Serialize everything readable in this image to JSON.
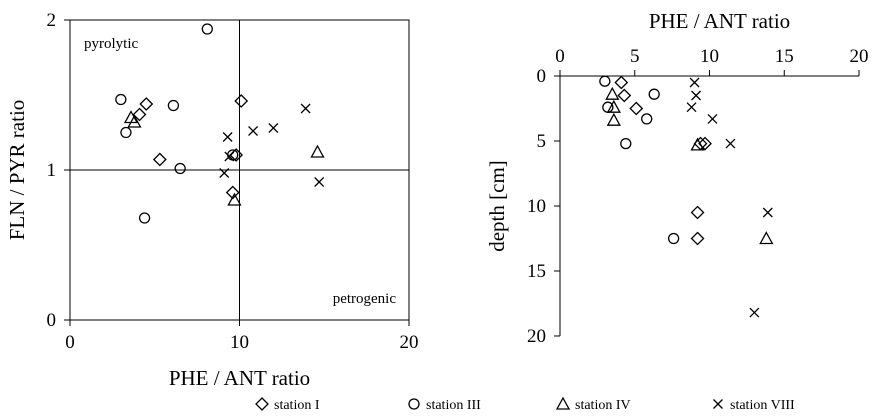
{
  "chart_data": [
    {
      "type": "scatter",
      "xlabel": "PHE / ANT ratio",
      "ylabel": "FLN / PYR ratio",
      "xlim": [
        0,
        20
      ],
      "ylim": [
        0,
        2
      ],
      "x_ticks": [
        "0",
        "10",
        "20"
      ],
      "y_ticks": [
        "0",
        "1",
        "2"
      ],
      "reference_lines": {
        "x": 10,
        "y": 1
      },
      "annotations": [
        {
          "id": "pyrolytic",
          "text": "pyrolytic",
          "position": "top-left"
        },
        {
          "id": "petrogenic",
          "text": "petrogenic",
          "position": "bottom-right"
        }
      ],
      "series": [
        {
          "name": "station I",
          "marker": "diamond",
          "points": [
            [
              4.1,
              1.37
            ],
            [
              4.5,
              1.44
            ],
            [
              5.3,
              1.07
            ],
            [
              9.6,
              0.85
            ],
            [
              9.8,
              1.1
            ],
            [
              10.1,
              1.46
            ]
          ]
        },
        {
          "name": "station III",
          "marker": "circle",
          "points": [
            [
              3.0,
              1.47
            ],
            [
              3.3,
              1.25
            ],
            [
              4.4,
              0.68
            ],
            [
              6.1,
              1.43
            ],
            [
              6.5,
              1.01
            ],
            [
              8.1,
              1.94
            ],
            [
              9.6,
              1.1
            ]
          ]
        },
        {
          "name": "station IV",
          "marker": "triangle",
          "points": [
            [
              3.6,
              1.35
            ],
            [
              3.8,
              1.32
            ],
            [
              9.7,
              0.8
            ],
            [
              14.6,
              1.12
            ]
          ]
        },
        {
          "name": "station VIII",
          "marker": "cross",
          "points": [
            [
              9.1,
              0.98
            ],
            [
              9.3,
              1.22
            ],
            [
              9.4,
              1.09
            ],
            [
              10.8,
              1.26
            ],
            [
              12.0,
              1.28
            ],
            [
              13.9,
              1.41
            ],
            [
              14.7,
              0.92
            ]
          ]
        }
      ]
    },
    {
      "type": "scatter",
      "xlabel": "PHE / ANT ratio",
      "ylabel": "depth [cm]",
      "xlim": [
        0,
        20
      ],
      "ylim": [
        0,
        20
      ],
      "y_inverted": true,
      "x_axis_position": "top",
      "x_ticks": [
        "0",
        "5",
        "10",
        "15",
        "20"
      ],
      "y_ticks": [
        "0",
        "5",
        "10",
        "15",
        "20"
      ],
      "series": [
        {
          "name": "station I",
          "marker": "diamond",
          "points": [
            [
              4.1,
              0.5
            ],
            [
              4.3,
              1.5
            ],
            [
              5.1,
              2.5
            ],
            [
              9.2,
              10.5
            ],
            [
              9.2,
              12.5
            ],
            [
              9.4,
              5.2
            ],
            [
              9.7,
              5.2
            ]
          ]
        },
        {
          "name": "station III",
          "marker": "circle",
          "points": [
            [
              3.0,
              0.4
            ],
            [
              3.2,
              2.4
            ],
            [
              4.4,
              5.2
            ],
            [
              5.8,
              3.3
            ],
            [
              6.3,
              1.4
            ],
            [
              7.6,
              12.5
            ]
          ]
        },
        {
          "name": "station IV",
          "marker": "triangle",
          "points": [
            [
              3.5,
              1.4
            ],
            [
              3.6,
              2.4
            ],
            [
              3.6,
              3.4
            ],
            [
              9.2,
              5.3
            ],
            [
              13.8,
              12.5
            ]
          ]
        },
        {
          "name": "station VIII",
          "marker": "cross",
          "points": [
            [
              8.8,
              2.4
            ],
            [
              9.0,
              0.5
            ],
            [
              9.1,
              1.5
            ],
            [
              10.2,
              3.3
            ],
            [
              11.4,
              5.2
            ],
            [
              13.0,
              18.2
            ],
            [
              13.9,
              10.5
            ]
          ]
        }
      ]
    }
  ],
  "legend": {
    "placement": "bottom-center",
    "items": [
      {
        "label": "station I",
        "marker": "diamond"
      },
      {
        "label": "station III",
        "marker": "circle"
      },
      {
        "label": "station IV",
        "marker": "triangle"
      },
      {
        "label": "station VIII",
        "marker": "cross"
      }
    ]
  }
}
